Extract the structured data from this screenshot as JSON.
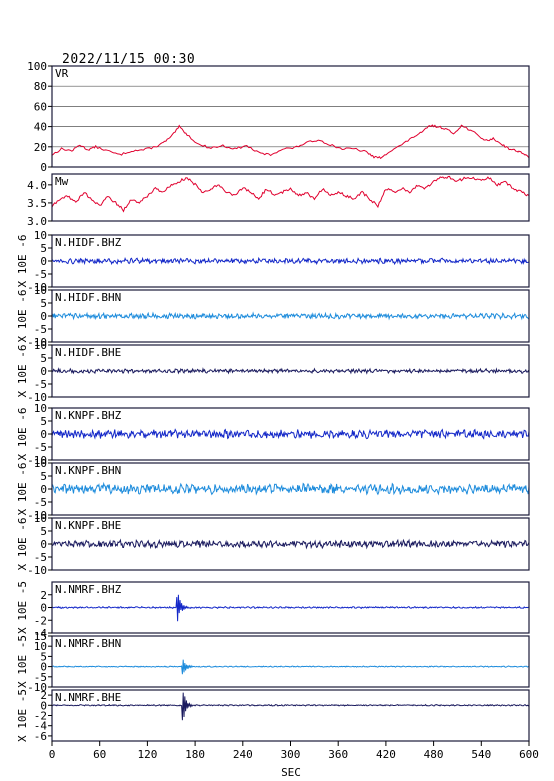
{
  "header": {
    "timestamp": "2022/11/15 00:30"
  },
  "chart_data": {
    "type": "line",
    "xlabel": "SEC",
    "xlim": [
      0,
      600
    ],
    "xticks": [
      "0",
      "60",
      "120",
      "180",
      "240",
      "300",
      "360",
      "420",
      "480",
      "540",
      "600"
    ],
    "panels": [
      {
        "id": "vr",
        "label": "VR",
        "ylim": [
          0,
          100
        ],
        "yticks": [
          "0",
          "20",
          "40",
          "60",
          "80",
          "100"
        ],
        "grid": true,
        "ylabel": "",
        "color": "#e0002e",
        "series": {
          "x": [
            0,
            12,
            25,
            35,
            45,
            55,
            70,
            85,
            100,
            115,
            130,
            140,
            150,
            160,
            170,
            185,
            200,
            215,
            230,
            245,
            260,
            275,
            290,
            305,
            320,
            335,
            350,
            365,
            380,
            395,
            405,
            415,
            425,
            440,
            455,
            465,
            475,
            485,
            495,
            505,
            515,
            525,
            535,
            545,
            555,
            565,
            575,
            585,
            592,
            600
          ],
          "y": [
            12,
            18,
            16,
            22,
            17,
            20,
            16,
            12,
            16,
            17,
            20,
            24,
            30,
            40,
            32,
            22,
            19,
            21,
            18,
            21,
            14,
            12,
            18,
            19,
            24,
            27,
            22,
            18,
            18,
            15,
            10,
            9,
            16,
            22,
            30,
            34,
            41,
            40,
            38,
            33,
            41,
            37,
            32,
            26,
            28,
            23,
            18,
            16,
            14,
            9
          ]
        }
      },
      {
        "id": "mw",
        "label": "Mw",
        "ylim": [
          3.0,
          4.3
        ],
        "yticks": [
          "3.0",
          "3.5",
          "4.0"
        ],
        "grid": false,
        "ylabel": "",
        "color": "#e0002e",
        "series": {
          "x": [
            0,
            10,
            20,
            30,
            40,
            50,
            60,
            70,
            80,
            90,
            100,
            110,
            120,
            130,
            140,
            150,
            160,
            170,
            180,
            190,
            200,
            210,
            220,
            230,
            240,
            250,
            260,
            270,
            280,
            290,
            300,
            310,
            320,
            330,
            340,
            350,
            360,
            370,
            380,
            390,
            400,
            410,
            420,
            430,
            440,
            450,
            460,
            470,
            480,
            490,
            500,
            510,
            520,
            530,
            540,
            550,
            560,
            570,
            580,
            590,
            600
          ],
          "y": [
            3.4,
            3.6,
            3.7,
            3.5,
            3.8,
            3.6,
            3.4,
            3.7,
            3.5,
            3.3,
            3.6,
            3.5,
            3.7,
            3.9,
            3.8,
            4.0,
            4.1,
            4.2,
            4.0,
            3.8,
            3.9,
            4.0,
            3.8,
            3.7,
            3.9,
            3.8,
            3.6,
            3.9,
            3.7,
            3.8,
            3.9,
            3.7,
            3.8,
            3.6,
            3.9,
            3.7,
            3.8,
            3.7,
            3.6,
            3.8,
            3.6,
            3.4,
            3.9,
            3.8,
            3.9,
            3.8,
            4.0,
            3.9,
            4.1,
            4.2,
            4.2,
            4.1,
            4.2,
            4.2,
            4.1,
            4.2,
            4.0,
            4.1,
            3.9,
            3.8,
            3.7
          ]
        }
      },
      {
        "id": "hidf-bhz",
        "label": "N.HIDF.BHZ",
        "ylim": [
          -10,
          10
        ],
        "yticks": [
          "-10",
          "-5",
          "0",
          "5",
          "10"
        ],
        "ylabel": "X 10E -6",
        "color": "#1428c8",
        "trace": {
          "noise_amplitude": 0.8
        }
      },
      {
        "id": "hidf-bhn",
        "label": "N.HIDF.BHN",
        "ylim": [
          -10,
          10
        ],
        "yticks": [
          "-10",
          "-5",
          "0",
          "5",
          "10"
        ],
        "ylabel": "X 10E -6",
        "color": "#1e8cdc",
        "trace": {
          "noise_amplitude": 0.8
        }
      },
      {
        "id": "hidf-bhe",
        "label": "N.HIDF.BHE",
        "ylim": [
          -10,
          10
        ],
        "yticks": [
          "-10",
          "-5",
          "0",
          "5",
          "10"
        ],
        "ylabel": "X 10E -6",
        "color": "#1a1a5e",
        "trace": {
          "noise_amplitude": 0.6
        }
      },
      {
        "id": "knpf-bhz",
        "label": "N.KNPF.BHZ",
        "ylim": [
          -10,
          10
        ],
        "yticks": [
          "-10",
          "-5",
          "0",
          "5",
          "10"
        ],
        "ylabel": "X 10E -6",
        "color": "#1428c8",
        "trace": {
          "noise_amplitude": 1.3
        }
      },
      {
        "id": "knpf-bhn",
        "label": "N.KNPF.BHN",
        "ylim": [
          -10,
          10
        ],
        "yticks": [
          "-10",
          "-5",
          "0",
          "5",
          "10"
        ],
        "ylabel": "X 10E -6",
        "color": "#1e8cdc",
        "trace": {
          "noise_amplitude": 1.5
        }
      },
      {
        "id": "knpf-bhe",
        "label": "N.KNPF.BHE",
        "ylim": [
          -10,
          10
        ],
        "yticks": [
          "-10",
          "-5",
          "0",
          "5",
          "10"
        ],
        "ylabel": "X 10E -6",
        "color": "#1a1a5e",
        "trace": {
          "noise_amplitude": 1.1
        }
      },
      {
        "id": "nmrf-bhz",
        "label": "N.NMRF.BHZ",
        "ylim": [
          -4,
          4
        ],
        "yticks": [
          "-4",
          "-2",
          "0",
          "2"
        ],
        "ylabel": "X 10E -5",
        "color": "#1428c8",
        "trace": {
          "noise_amplitude": 0.1,
          "event_time": 157,
          "event_amplitude": 3.5
        }
      },
      {
        "id": "nmrf-bhn",
        "label": "N.NMRF.BHN",
        "ylim": [
          -10,
          15
        ],
        "yticks": [
          "-10",
          "-5",
          "0",
          "5",
          "10",
          "15"
        ],
        "ylabel": "X 10E -5",
        "color": "#1e8cdc",
        "trace": {
          "noise_amplitude": 0.2,
          "event_time": 164,
          "event_amplitude": 6.0
        }
      },
      {
        "id": "nmrf-bhe",
        "label": "N.NMRF.BHE",
        "ylim": [
          -7,
          3
        ],
        "yticks": [
          "-6",
          "-4",
          "-2",
          "0",
          "2"
        ],
        "ylabel": "X 10E -5",
        "color": "#1a1a5e",
        "trace": {
          "noise_amplitude": 0.1,
          "event_time": 164,
          "event_amplitude": 4.0
        }
      }
    ]
  }
}
